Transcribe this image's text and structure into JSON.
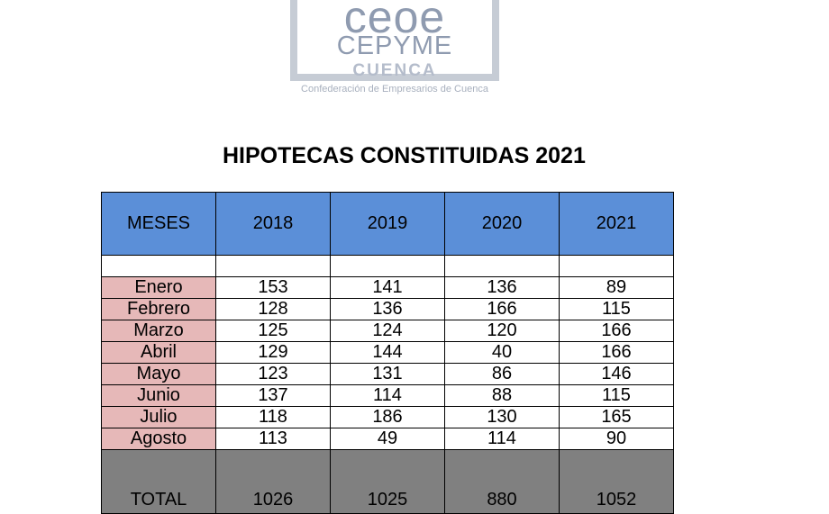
{
  "logo": {
    "line1": "ceoe",
    "line2": "CEPYME",
    "line3": "CUENCA",
    "tagline": "Confederación de Empresarios de Cuenca"
  },
  "title": "HIPOTECAS CONSTITUIDAS 2021",
  "table": {
    "headers": [
      "MESES",
      "2018",
      "2019",
      "2020",
      "2021"
    ],
    "rows": [
      {
        "month": "Enero",
        "values": [
          "153",
          "141",
          "136",
          "89"
        ]
      },
      {
        "month": "Febrero",
        "values": [
          "128",
          "136",
          "166",
          "115"
        ]
      },
      {
        "month": "Marzo",
        "values": [
          "125",
          "124",
          "120",
          "166"
        ]
      },
      {
        "month": "Abril",
        "values": [
          "129",
          "144",
          "40",
          "166"
        ]
      },
      {
        "month": "Mayo",
        "values": [
          "123",
          "131",
          "86",
          "146"
        ]
      },
      {
        "month": "Junio",
        "values": [
          "137",
          "114",
          "88",
          "115"
        ]
      },
      {
        "month": "Julio",
        "values": [
          "118",
          "186",
          "130",
          "165"
        ]
      },
      {
        "month": "Agosto",
        "values": [
          "113",
          "49",
          "114",
          "90"
        ]
      }
    ],
    "total": {
      "label": "TOTAL",
      "values": [
        "1026",
        "1025",
        "880",
        "1052"
      ]
    }
  },
  "colors": {
    "header_bg": "#5b8fd8",
    "month_bg": "#e6b8b8",
    "total_bg": "#808080",
    "logo_color": "#8f9bb0"
  }
}
